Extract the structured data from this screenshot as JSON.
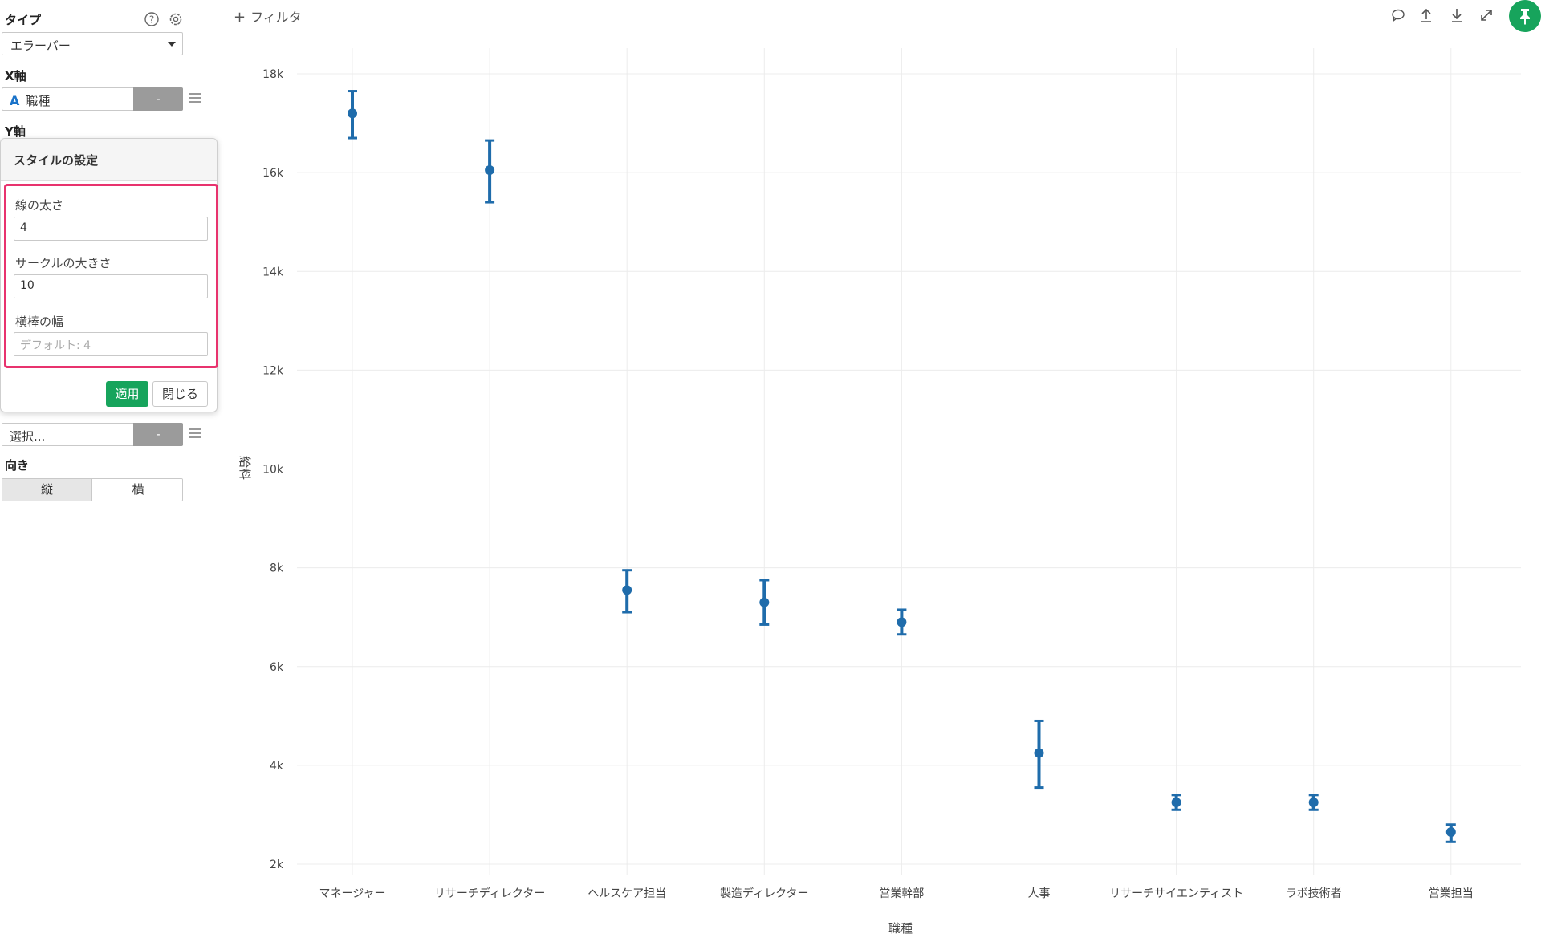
{
  "sidebar": {
    "type_label": "タイプ",
    "chart_type": "エラーバー",
    "x_label": "X軸",
    "x_field": "職種",
    "x_type_icon": "A",
    "x_aggr": "-",
    "y_label": "Y軸",
    "color_field_placeholder": "選択...",
    "color_aggr": "-",
    "orientation_label": "向き",
    "orientation_vertical": "縦",
    "orientation_horizontal": "横"
  },
  "popover": {
    "title": "スタイルの設定",
    "line_width_label": "線の太さ",
    "line_width_value": "4",
    "circle_size_label": "サークルの大きさ",
    "circle_size_value": "10",
    "bar_width_label": "横棒の幅",
    "bar_width_placeholder": "デフォルト: 4",
    "apply_label": "適用",
    "close_label": "閉じる"
  },
  "toolbar": {
    "filter_label": "フィルタ",
    "icons": [
      "comment-icon",
      "upload-icon",
      "download-icon",
      "expand-icon",
      "pin-icon"
    ]
  },
  "colors": {
    "accent": "#17a45c",
    "highlight": "#e8336e",
    "series": "#1f6cab"
  },
  "chart_data": {
    "type": "errorbar",
    "xlabel": "職種",
    "ylabel": "給料",
    "ylim": [
      2000,
      18000
    ],
    "y_ticks": [
      2000,
      4000,
      6000,
      8000,
      10000,
      12000,
      14000,
      16000,
      18000
    ],
    "y_tick_labels": [
      "2k",
      "4k",
      "6k",
      "8k",
      "10k",
      "12k",
      "14k",
      "16k",
      "18k"
    ],
    "grid": true,
    "categories": [
      "マネージャー",
      "リサーチディレクター",
      "ヘルスケア担当",
      "製造ディレクター",
      "営業幹部",
      "人事",
      "リサーチサイエンティスト",
      "ラボ技術者",
      "営業担当"
    ],
    "values": [
      17200,
      16050,
      7550,
      7300,
      6900,
      4250,
      3250,
      3250,
      2650
    ],
    "lower": [
      16700,
      15400,
      7100,
      6850,
      6650,
      3550,
      3100,
      3100,
      2450
    ],
    "upper": [
      17650,
      16650,
      7950,
      7750,
      7150,
      4900,
      3400,
      3400,
      2800
    ]
  }
}
